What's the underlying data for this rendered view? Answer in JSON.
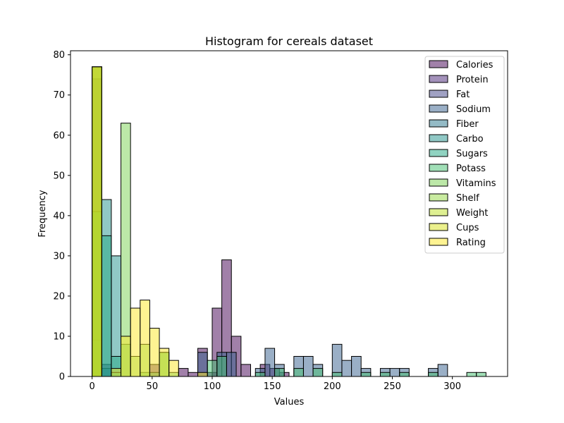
{
  "chart_data": {
    "type": "bar",
    "title": "Histogram for cereals dataset",
    "xlabel": "Values",
    "ylabel": "Frequency",
    "xlim": [
      -18,
      346
    ],
    "ylim": [
      0,
      81
    ],
    "xticks": [
      0,
      50,
      100,
      150,
      200,
      250,
      300
    ],
    "yticks": [
      0,
      10,
      20,
      30,
      40,
      50,
      60,
      70,
      80
    ],
    "bin_width": 8,
    "bin_start": 0,
    "grid": false,
    "legend_position": "top-right",
    "series": [
      {
        "name": "Calories",
        "color": "#440154",
        "bins": [
          {
            "x": 48,
            "y": 3
          },
          {
            "x": 72,
            "y": 2
          },
          {
            "x": 80,
            "y": 1
          },
          {
            "x": 88,
            "y": 7
          },
          {
            "x": 96,
            "y": 1
          },
          {
            "x": 100,
            "y": 17
          },
          {
            "x": 108,
            "y": 29
          },
          {
            "x": 116,
            "y": 10
          },
          {
            "x": 124,
            "y": 3
          },
          {
            "x": 140,
            "y": 3
          },
          {
            "x": 148,
            "y": 2
          },
          {
            "x": 156,
            "y": 1
          }
        ]
      },
      {
        "name": "Protein",
        "color": "#482475",
        "bins": [
          {
            "x": 0,
            "y": 74
          },
          {
            "x": 8,
            "y": 3
          }
        ]
      },
      {
        "name": "Fat",
        "color": "#414487",
        "bins": [
          {
            "x": 0,
            "y": 77
          }
        ]
      },
      {
        "name": "Sodium",
        "color": "#355f8d",
        "bins": [
          {
            "x": 0,
            "y": 9
          },
          {
            "x": 88,
            "y": 6
          },
          {
            "x": 104,
            "y": 6
          },
          {
            "x": 112,
            "y": 6
          },
          {
            "x": 136,
            "y": 2
          },
          {
            "x": 144,
            "y": 7
          },
          {
            "x": 152,
            "y": 3
          },
          {
            "x": 168,
            "y": 5
          },
          {
            "x": 176,
            "y": 5
          },
          {
            "x": 184,
            "y": 3
          },
          {
            "x": 200,
            "y": 8
          },
          {
            "x": 208,
            "y": 4
          },
          {
            "x": 216,
            "y": 5
          },
          {
            "x": 224,
            "y": 2
          },
          {
            "x": 240,
            "y": 2
          },
          {
            "x": 248,
            "y": 2
          },
          {
            "x": 256,
            "y": 2
          },
          {
            "x": 280,
            "y": 2
          },
          {
            "x": 288,
            "y": 3
          }
        ]
      },
      {
        "name": "Fiber",
        "color": "#2a788e",
        "bins": [
          {
            "x": 0,
            "y": 41
          },
          {
            "x": 8,
            "y": 2
          }
        ]
      },
      {
        "name": "Carbo",
        "color": "#21918c",
        "bins": [
          {
            "x": 8,
            "y": 44
          },
          {
            "x": 16,
            "y": 30
          }
        ]
      },
      {
        "name": "Sugars",
        "color": "#22a884",
        "bins": [
          {
            "x": 0,
            "y": 41
          },
          {
            "x": 8,
            "y": 35
          },
          {
            "x": 16,
            "y": 5
          }
        ]
      },
      {
        "name": "Potass",
        "color": "#44bf70",
        "bins": [
          {
            "x": 16,
            "y": 1
          },
          {
            "x": 24,
            "y": 8
          },
          {
            "x": 40,
            "y": 1
          },
          {
            "x": 48,
            "y": 1
          },
          {
            "x": 56,
            "y": 6
          },
          {
            "x": 64,
            "y": 1
          },
          {
            "x": 96,
            "y": 4
          },
          {
            "x": 104,
            "y": 5
          },
          {
            "x": 136,
            "y": 1
          },
          {
            "x": 152,
            "y": 2
          },
          {
            "x": 168,
            "y": 2
          },
          {
            "x": 184,
            "y": 2
          },
          {
            "x": 200,
            "y": 1
          },
          {
            "x": 224,
            "y": 1
          },
          {
            "x": 240,
            "y": 1
          },
          {
            "x": 256,
            "y": 1
          },
          {
            "x": 280,
            "y": 1
          },
          {
            "x": 312,
            "y": 1
          },
          {
            "x": 320,
            "y": 1
          }
        ]
      },
      {
        "name": "Vitamins",
        "color": "#7ad151",
        "bins": [
          {
            "x": 24,
            "y": 63
          },
          {
            "x": 32,
            "y": 5
          },
          {
            "x": 40,
            "y": 8
          },
          {
            "x": 56,
            "y": 6
          }
        ]
      },
      {
        "name": "Shelf",
        "color": "#93d741",
        "bins": [
          {
            "x": 0,
            "y": 77
          }
        ]
      },
      {
        "name": "Weight",
        "color": "#bddf26",
        "bins": [
          {
            "x": 0,
            "y": 77
          }
        ]
      },
      {
        "name": "Cups",
        "color": "#d8e219",
        "bins": [
          {
            "x": 0,
            "y": 77
          }
        ]
      },
      {
        "name": "Rating",
        "color": "#fde725",
        "bins": [
          {
            "x": 16,
            "y": 2
          },
          {
            "x": 24,
            "y": 10
          },
          {
            "x": 32,
            "y": 17
          },
          {
            "x": 40,
            "y": 19
          },
          {
            "x": 48,
            "y": 12
          },
          {
            "x": 56,
            "y": 7
          },
          {
            "x": 64,
            "y": 4
          },
          {
            "x": 88,
            "y": 1
          }
        ]
      }
    ]
  }
}
